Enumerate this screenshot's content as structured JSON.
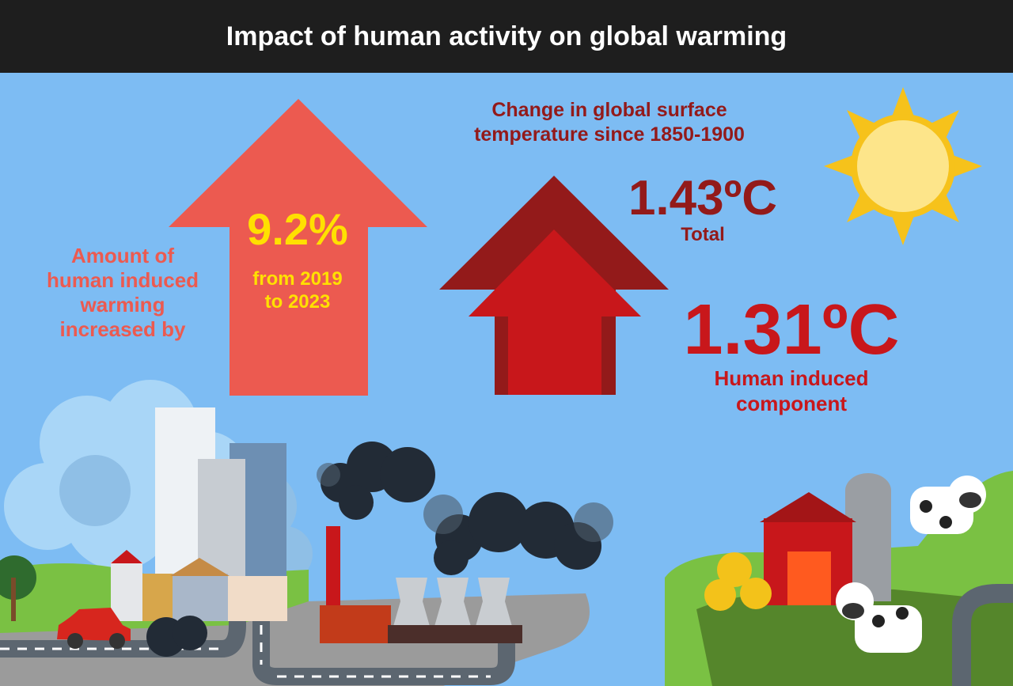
{
  "header": {
    "title": "Impact of human activity on global warming"
  },
  "left_panel": {
    "label_lines": [
      "Amount of",
      "human induced",
      "warming",
      "increased by"
    ],
    "value": "9.2%",
    "period_lines": [
      "from 2019",
      "to 2023"
    ]
  },
  "right_panel": {
    "heading_lines": [
      "Change in global surface",
      "temperature since 1850-1900"
    ],
    "total": {
      "value": "1.43ºC",
      "label": "Total"
    },
    "human": {
      "value": "1.31ºC",
      "label_lines": [
        "Human induced",
        "component"
      ]
    }
  }
}
